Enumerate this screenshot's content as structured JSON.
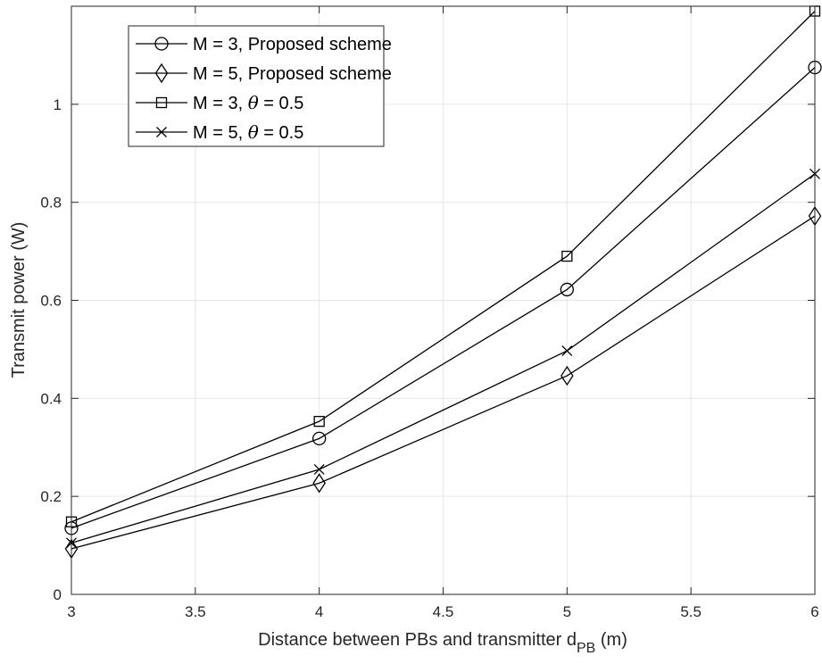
{
  "chart_data": {
    "type": "line",
    "x": [
      3,
      4,
      5,
      6
    ],
    "xlim": [
      3,
      6
    ],
    "ylim": [
      0,
      1.2
    ],
    "xticks": [
      3,
      3.5,
      4,
      4.5,
      5,
      5.5,
      6
    ],
    "xtick_labels": [
      "3",
      "3.5",
      "4",
      "4.5",
      "5",
      "5.5",
      "6"
    ],
    "yticks": [
      0,
      0.2,
      0.4,
      0.6,
      0.8,
      1
    ],
    "ytick_labels": [
      "0",
      "0.2",
      "0.4",
      "0.6",
      "0.8",
      "1"
    ],
    "grid": true,
    "legend_position": "top-left",
    "xlabel": "Distance between PBs and transmitter d",
    "xlabel_sub": "PB",
    "xlabel_unit": " (m)",
    "ylabel": "Transmit power (W)",
    "series": [
      {
        "name": "M = 3, Proposed scheme",
        "marker": "circle",
        "values": [
          0.135,
          0.318,
          0.622,
          1.075
        ]
      },
      {
        "name": "M = 5, Proposed scheme",
        "marker": "diamond",
        "values": [
          0.093,
          0.227,
          0.446,
          0.772
        ]
      },
      {
        "name": "M = 3, θ = 0.5",
        "marker": "square",
        "values": [
          0.148,
          0.353,
          0.69,
          1.19
        ]
      },
      {
        "name": "M = 5, θ = 0.5",
        "marker": "x",
        "values": [
          0.105,
          0.255,
          0.497,
          0.858
        ]
      }
    ]
  }
}
